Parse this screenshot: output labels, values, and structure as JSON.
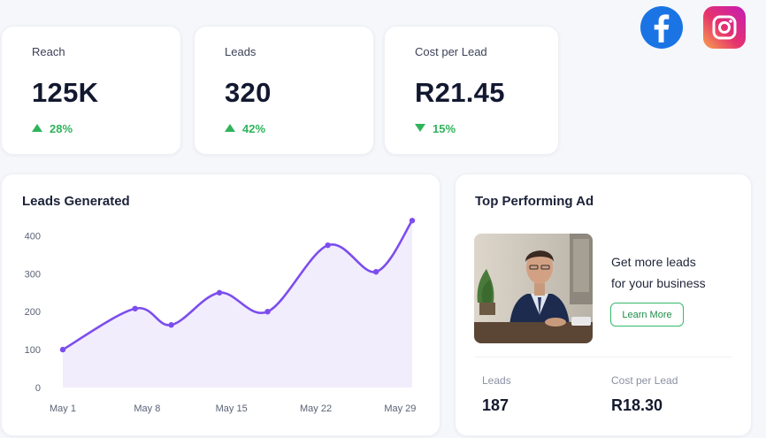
{
  "kpis": [
    {
      "label": "Reach",
      "value": "125K",
      "change": "28%",
      "direction": "up"
    },
    {
      "label": "Leads",
      "value": "320",
      "change": "42%",
      "direction": "up"
    },
    {
      "label": "Cost per Lead",
      "value": "R21.45",
      "change": "15%",
      "direction": "down"
    }
  ],
  "social": {
    "facebook_icon": "facebook-icon",
    "instagram_icon": "instagram-icon"
  },
  "leads_chart": {
    "title": "Leads Generated"
  },
  "chart_data": {
    "type": "area",
    "title": "Leads Generated",
    "xlabel": "",
    "ylabel": "",
    "x_tick_labels": [
      "May 1",
      "May 8",
      "May 15",
      "May 22",
      "May 29"
    ],
    "x_ticks": [
      1,
      8,
      15,
      22,
      29
    ],
    "xlim": [
      1,
      30
    ],
    "y_ticks": [
      0,
      100,
      200,
      300,
      400
    ],
    "ylim": [
      0,
      450
    ],
    "grid": false,
    "series": [
      {
        "color": "#7c4dee",
        "x": [
          1,
          7,
          10,
          14,
          18,
          23,
          27,
          30
        ],
        "y": [
          100,
          208,
          165,
          250,
          200,
          375,
          305,
          440
        ]
      }
    ]
  },
  "top_ad": {
    "title": "Top Performing Ad",
    "headline_line1": "Get more leads",
    "headline_line2": "for your business",
    "button_label": "Learn More",
    "stats": [
      {
        "label": "Leads",
        "value": "187"
      },
      {
        "label": "Cost per Lead",
        "value": "R18.30"
      }
    ]
  },
  "colors": {
    "accent": "#7c4dee",
    "positive": "#2fb35b",
    "facebook": "#1b74e4"
  }
}
